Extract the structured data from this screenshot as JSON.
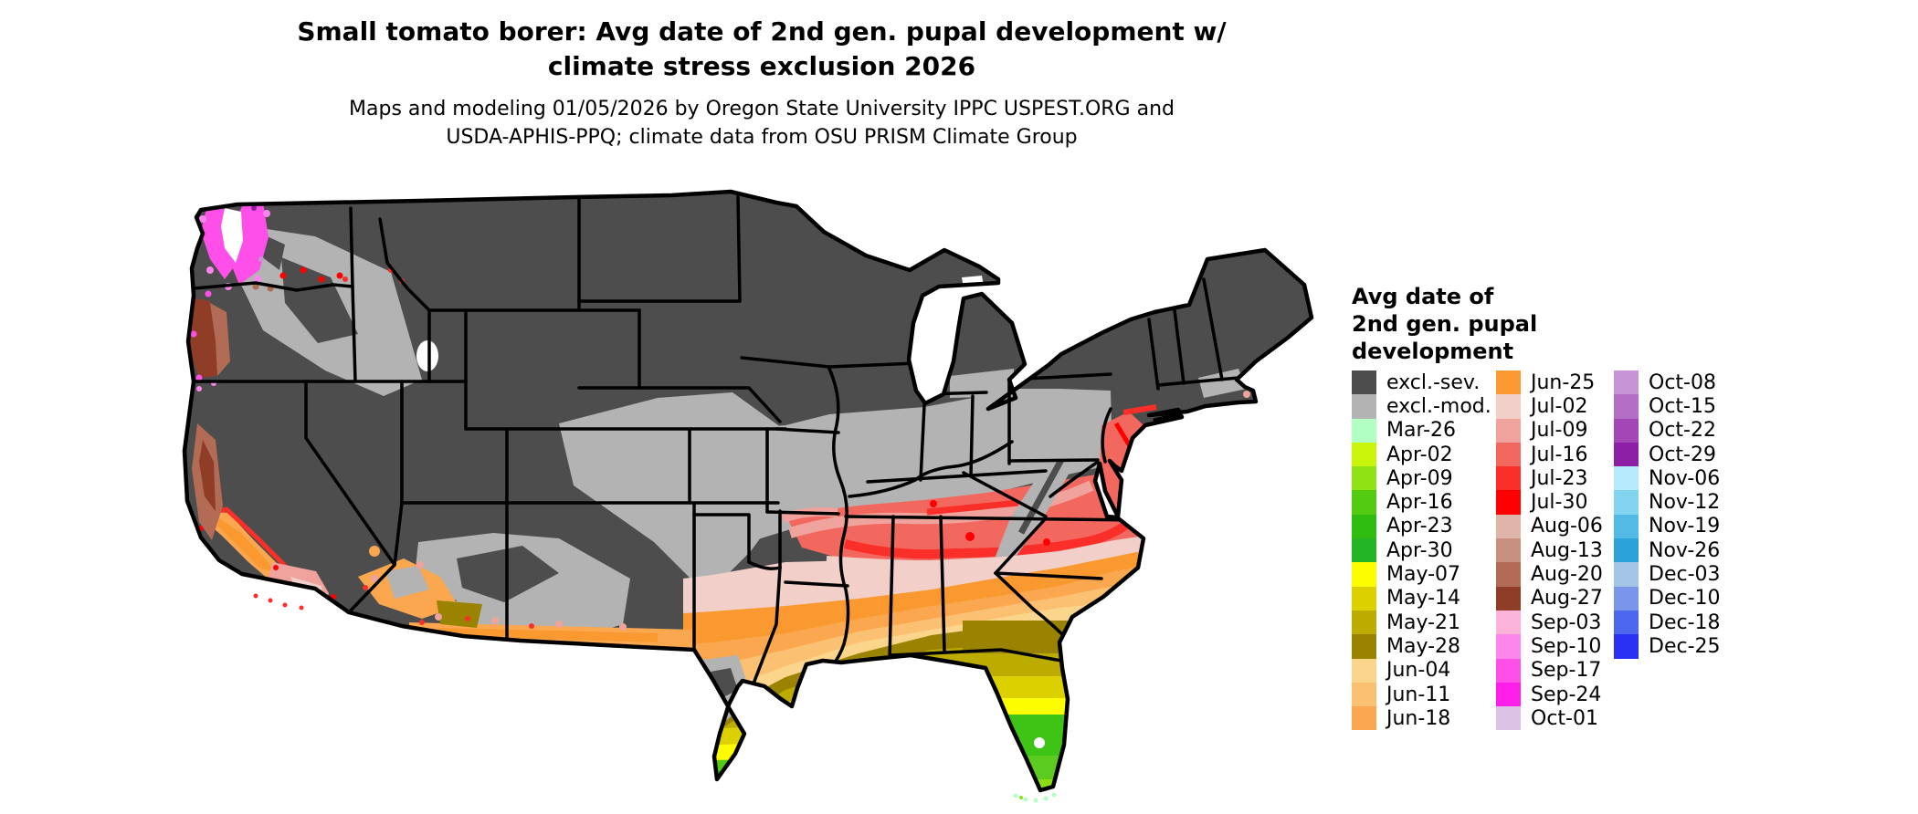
{
  "title": {
    "line1": "Small tomato borer: Avg date of 2nd gen. pupal development w/",
    "line2": "climate stress exclusion 2026"
  },
  "subtitle": {
    "line1": "Maps and modeling 01/05/2026 by Oregon State University IPPC USPEST.ORG and",
    "line2": "USDA-APHIS-PPQ; climate data from OSU PRISM Climate Group"
  },
  "legend": {
    "title_lines": [
      "Avg date of",
      "2nd gen. pupal",
      "development"
    ],
    "columns": [
      [
        {
          "label": "excl.-sev.",
          "color": "#4D4D4D"
        },
        {
          "label": "excl.-mod.",
          "color": "#B3B3B3"
        },
        {
          "label": "Mar-26",
          "color": "#B2FFC3"
        },
        {
          "label": "Apr-02",
          "color": "#C9F50A"
        },
        {
          "label": "Apr-09",
          "color": "#8FE213"
        },
        {
          "label": "Apr-16",
          "color": "#53CB11"
        },
        {
          "label": "Apr-23",
          "color": "#2FBE0F"
        },
        {
          "label": "Apr-30",
          "color": "#23B523"
        },
        {
          "label": "May-07",
          "color": "#FDFD00"
        },
        {
          "label": "May-14",
          "color": "#DCD000"
        },
        {
          "label": "May-21",
          "color": "#BCAC00"
        },
        {
          "label": "May-28",
          "color": "#998300"
        },
        {
          "label": "Jun-04",
          "color": "#FBD58C"
        },
        {
          "label": "Jun-11",
          "color": "#FBC071"
        },
        {
          "label": "Jun-18",
          "color": "#FAA74F"
        }
      ],
      [
        {
          "label": "Jun-25",
          "color": "#F9992F"
        },
        {
          "label": "Jul-02",
          "color": "#F2CFC9"
        },
        {
          "label": "Jul-09",
          "color": "#F0A29C"
        },
        {
          "label": "Jul-16",
          "color": "#F3685E"
        },
        {
          "label": "Jul-23",
          "color": "#FB2F2A"
        },
        {
          "label": "Jul-30",
          "color": "#FE0000"
        },
        {
          "label": "Aug-06",
          "color": "#DFB5A9"
        },
        {
          "label": "Aug-13",
          "color": "#C8907F"
        },
        {
          "label": "Aug-20",
          "color": "#B26B54"
        },
        {
          "label": "Aug-27",
          "color": "#8F3D26"
        },
        {
          "label": "Sep-03",
          "color": "#FBB3DA"
        },
        {
          "label": "Sep-10",
          "color": "#FD86EC"
        },
        {
          "label": "Sep-17",
          "color": "#FE50E9"
        },
        {
          "label": "Sep-24",
          "color": "#FE1EE9"
        },
        {
          "label": "Oct-01",
          "color": "#DCC3E5"
        }
      ],
      [
        {
          "label": "Oct-08",
          "color": "#C795D5"
        },
        {
          "label": "Oct-15",
          "color": "#B56EC6"
        },
        {
          "label": "Oct-22",
          "color": "#A346B6"
        },
        {
          "label": "Oct-29",
          "color": "#8C1FA6"
        },
        {
          "label": "Nov-06",
          "color": "#B5E9FB"
        },
        {
          "label": "Nov-12",
          "color": "#83D4F1"
        },
        {
          "label": "Nov-19",
          "color": "#52BAE5"
        },
        {
          "label": "Nov-26",
          "color": "#2BA2D8"
        },
        {
          "label": "Dec-03",
          "color": "#A5C5E7"
        },
        {
          "label": "Dec-10",
          "color": "#7A96EB"
        },
        {
          "label": "Dec-18",
          "color": "#4E67EF"
        },
        {
          "label": "Dec-25",
          "color": "#2B30F5"
        }
      ]
    ]
  }
}
